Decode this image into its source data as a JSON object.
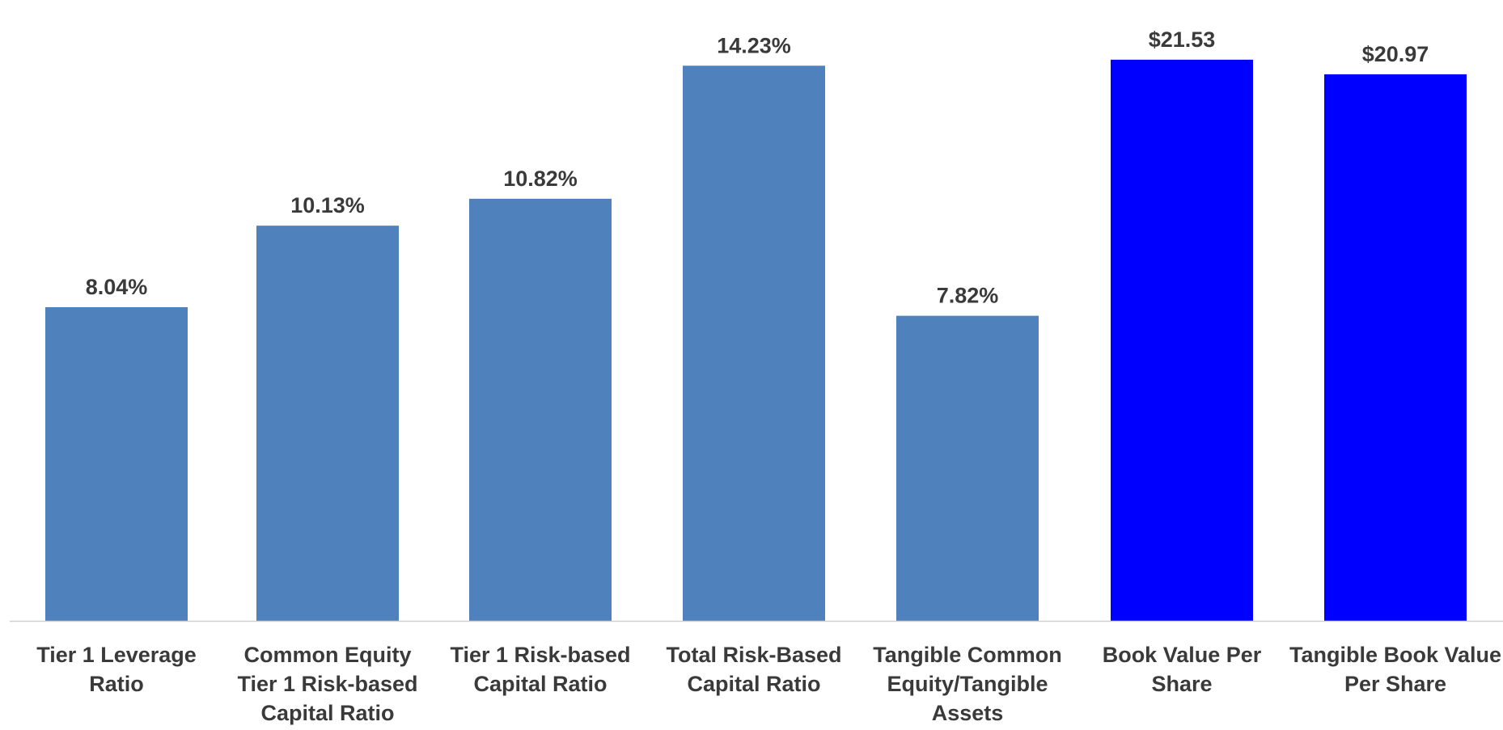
{
  "chart_data": {
    "type": "bar",
    "title": "",
    "xlabel": "",
    "ylabel": "",
    "grid": false,
    "legend": "none",
    "categories": [
      [
        "Tier 1 Leverage",
        "Ratio"
      ],
      [
        "Common Equity",
        "Tier 1 Risk-based",
        "Capital Ratio"
      ],
      [
        "Tier 1 Risk-based",
        "Capital Ratio"
      ],
      [
        "Total Risk-Based",
        "Capital Ratio"
      ],
      [
        "Tangible Common",
        "Equity/Tangible",
        "Assets"
      ],
      [
        "Book Value Per",
        "Share"
      ],
      [
        "Tangible Book Value",
        "Per Share"
      ]
    ],
    "values": [
      8.04,
      10.13,
      10.82,
      14.23,
      7.82,
      21.53,
      20.97
    ],
    "labels": [
      "8.04%",
      "10.13%",
      "10.82%",
      "14.23%",
      "7.82%",
      "$21.53",
      "$20.97"
    ],
    "units": [
      "%",
      "%",
      "%",
      "%",
      "%",
      "$",
      "$"
    ],
    "ratio_ylim": [
      0,
      15.5
    ],
    "dollar_ylim": [
      0,
      23.2
    ],
    "colors": {
      "ratio_bar": "#4f81bd",
      "dollar_bar": "#0000ff",
      "axis_line": "#d0d0d0",
      "text": "#3a3a3a"
    }
  }
}
